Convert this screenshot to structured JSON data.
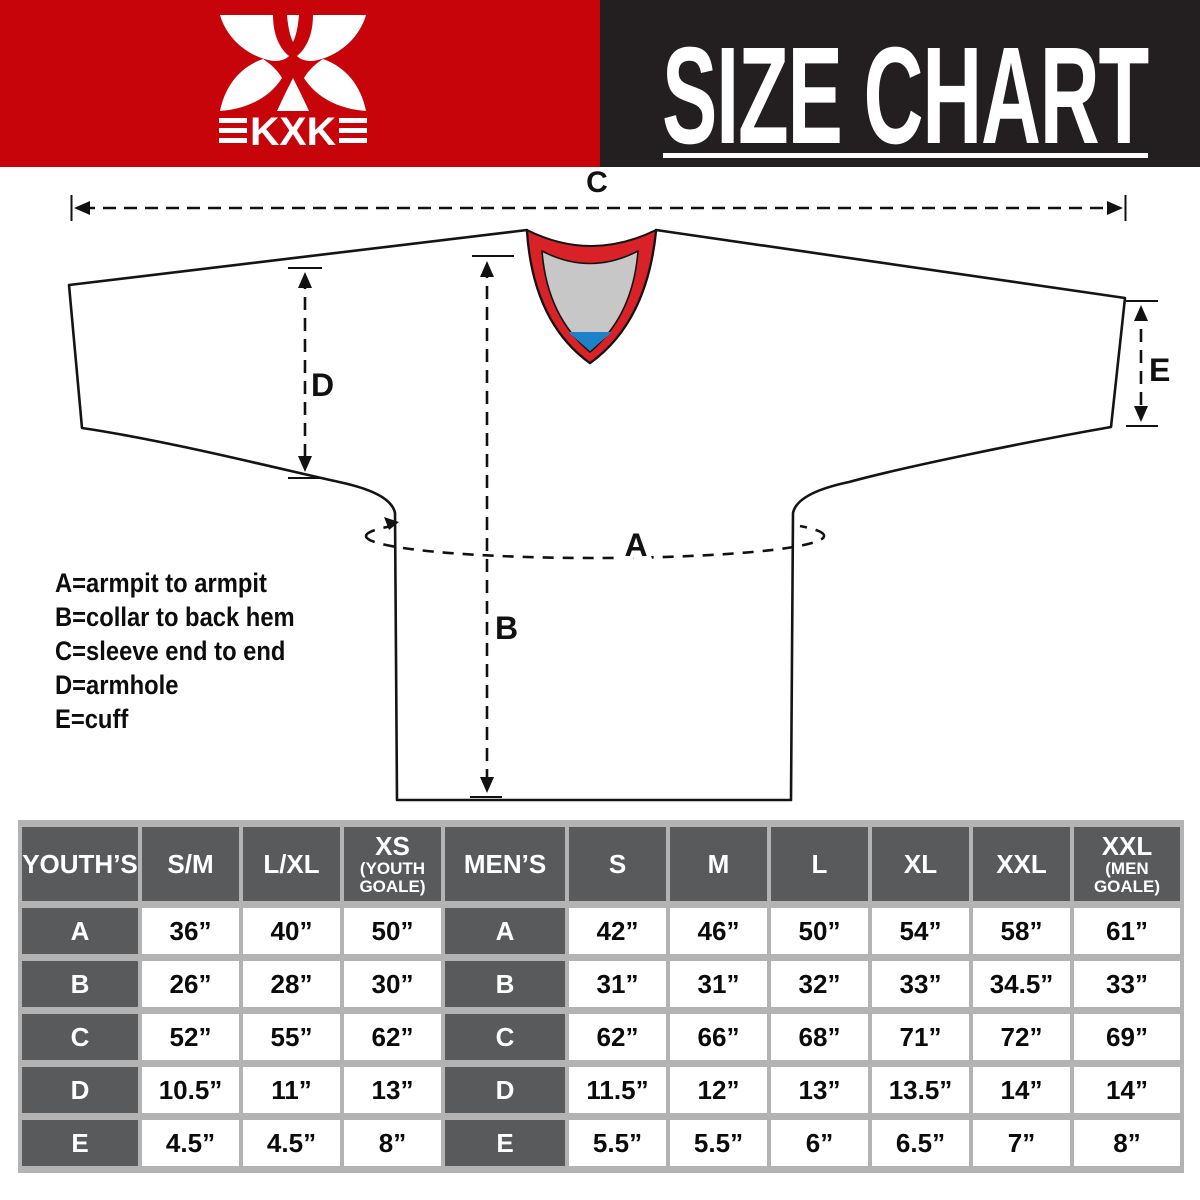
{
  "header": {
    "title": "SIZE CHART"
  },
  "brand": {
    "name": "KXK"
  },
  "diagram": {
    "labels": {
      "a": "A",
      "b": "B",
      "c": "C",
      "d": "D",
      "e": "E"
    },
    "legend": [
      "A=armpit to armpit",
      "B=collar to back hem",
      "C=sleeve end to end",
      "D=armhole",
      "E=cuff"
    ]
  },
  "colors": {
    "banner_red": "#C70409",
    "banner_black": "#231F20",
    "collar_red": "#D92128",
    "collar_gray": "#C7C7C7",
    "collar_blue": "#1E82C8",
    "table_header_gray": "#595A5C",
    "table_gap_gray": "#B3B3B3"
  },
  "table": {
    "headers": [
      {
        "main": "YOUTH’S"
      },
      {
        "main": "S/M"
      },
      {
        "main": "L/XL"
      },
      {
        "main": "XS",
        "sub1": "(YOUTH",
        "sub2": "GOALE)"
      },
      {
        "main": "MEN’S"
      },
      {
        "main": "S"
      },
      {
        "main": "M"
      },
      {
        "main": "L"
      },
      {
        "main": "XL"
      },
      {
        "main": "XXL"
      },
      {
        "main": "XXL",
        "sub1": "(MEN",
        "sub2": "GOALE)"
      }
    ],
    "rows": [
      {
        "label": "A",
        "youth": [
          "36”",
          "40”",
          "50”"
        ],
        "men": [
          "42”",
          "46”",
          "50”",
          "54”",
          "58”",
          "61”"
        ]
      },
      {
        "label": "B",
        "youth": [
          "26”",
          "28”",
          "30”"
        ],
        "men": [
          "31”",
          "31”",
          "32”",
          "33”",
          "34.5”",
          "33”"
        ]
      },
      {
        "label": "C",
        "youth": [
          "52”",
          "55”",
          "62”"
        ],
        "men": [
          "62”",
          "66”",
          "68”",
          "71”",
          "72”",
          "69”"
        ]
      },
      {
        "label": "D",
        "youth": [
          "10.5”",
          "11”",
          "13”"
        ],
        "men": [
          "11.5”",
          "12”",
          "13”",
          "13.5”",
          "14”",
          "14”"
        ]
      },
      {
        "label": "E",
        "youth": [
          "4.5”",
          "4.5”",
          "8”"
        ],
        "men": [
          "5.5”",
          "5.5”",
          "6”",
          "6.5”",
          "7”",
          "8”"
        ]
      }
    ]
  }
}
